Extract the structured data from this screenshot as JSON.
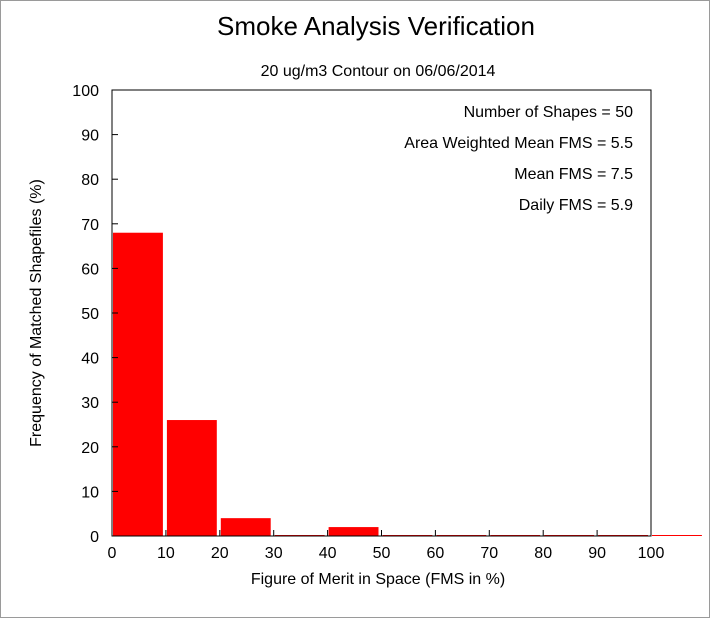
{
  "chart_data": {
    "type": "bar",
    "title": "Smoke Analysis Verification",
    "subtitle": "20 ug/m3 Contour on 06/06/2014",
    "xlabel": "Figure of Merit in Space (FMS in %)",
    "ylabel": "Frequency of Matched Shapefiles (%)",
    "xlim": [
      0,
      100
    ],
    "ylim": [
      0,
      100
    ],
    "x_ticks": [
      "0",
      "10",
      "20",
      "30",
      "40",
      "50",
      "60",
      "70",
      "80",
      "90",
      "100"
    ],
    "y_ticks": [
      "0",
      "10",
      "20",
      "30",
      "40",
      "50",
      "60",
      "70",
      "80",
      "90",
      "100"
    ],
    "bins": [
      {
        "range": [
          0,
          10
        ],
        "value": 68
      },
      {
        "range": [
          10,
          20
        ],
        "value": 26
      },
      {
        "range": [
          20,
          30
        ],
        "value": 4
      },
      {
        "range": [
          30,
          40
        ],
        "value": 0
      },
      {
        "range": [
          40,
          50
        ],
        "value": 2
      },
      {
        "range": [
          50,
          60
        ],
        "value": 0
      },
      {
        "range": [
          60,
          70
        ],
        "value": 0
      },
      {
        "range": [
          70,
          80
        ],
        "value": 0
      },
      {
        "range": [
          80,
          90
        ],
        "value": 0
      },
      {
        "range": [
          90,
          100
        ],
        "value": 0
      },
      {
        "range": [
          100,
          110
        ],
        "value": 0
      }
    ],
    "annotations": [
      "Number of Shapes = 50",
      "Area Weighted Mean FMS = 5.5",
      "Mean FMS = 7.5",
      "Daily FMS = 5.9"
    ],
    "bar_color": "#ff0000",
    "grid": false
  }
}
